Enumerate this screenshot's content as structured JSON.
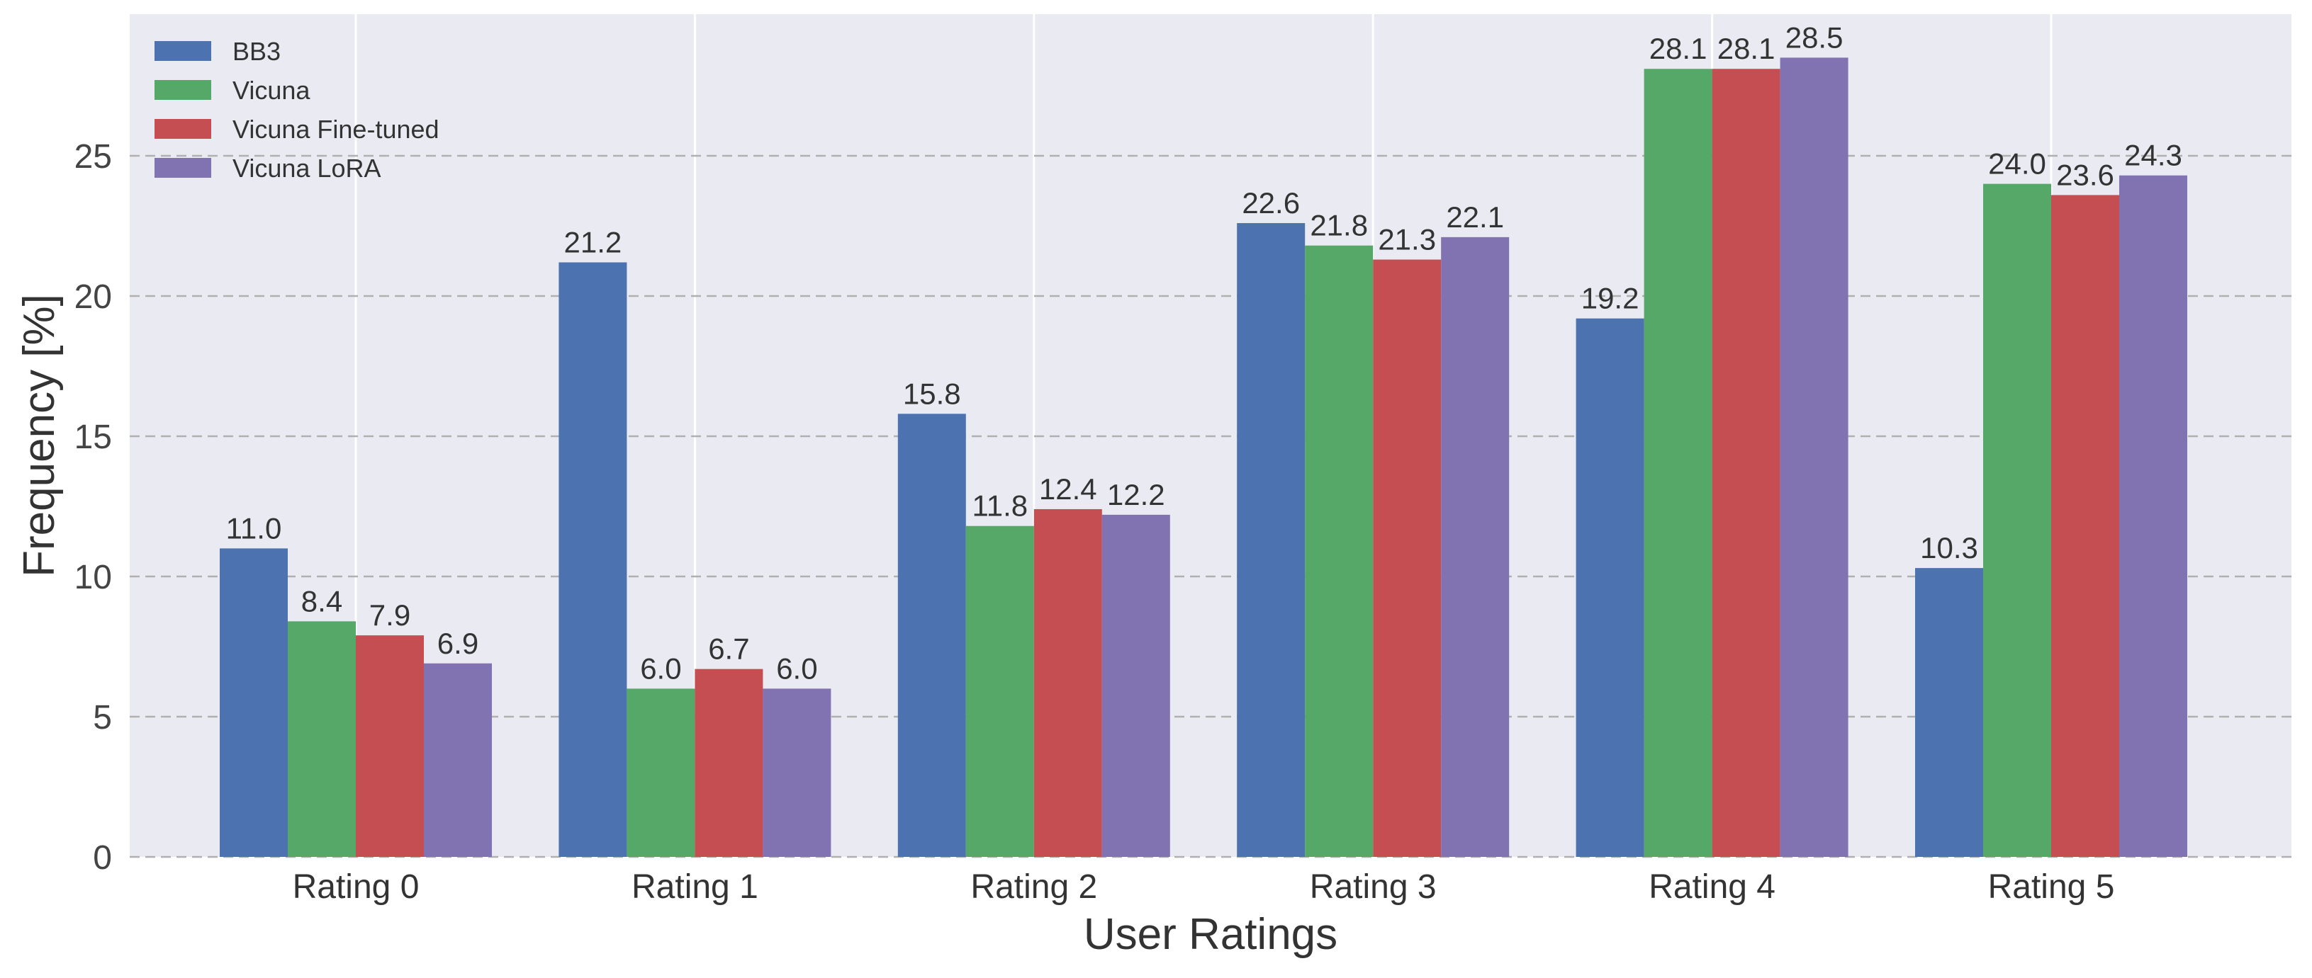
{
  "chart_data": {
    "type": "bar",
    "title": "",
    "xlabel": "User Ratings",
    "ylabel": "Frequency [%]",
    "categories": [
      "Rating 0",
      "Rating 1",
      "Rating 2",
      "Rating 3",
      "Rating 4",
      "Rating 5"
    ],
    "ylim": [
      0,
      30
    ],
    "yticks": [
      0,
      5,
      10,
      15,
      20,
      25
    ],
    "grid": true,
    "legend_position": "top-left",
    "series": [
      {
        "name": "BB3",
        "color": "#4c72b0",
        "values": [
          11.0,
          21.2,
          15.8,
          22.6,
          19.2,
          10.3
        ]
      },
      {
        "name": "Vicuna",
        "color": "#55a868",
        "values": [
          8.4,
          6.0,
          11.8,
          21.8,
          28.1,
          24.0
        ]
      },
      {
        "name": "Vicuna Fine-tuned",
        "color": "#c44e52",
        "values": [
          7.9,
          6.7,
          12.4,
          21.3,
          28.1,
          23.6
        ]
      },
      {
        "name": "Vicuna LoRA",
        "color": "#8172b2",
        "values": [
          6.9,
          6.0,
          12.2,
          22.1,
          28.5,
          24.3
        ]
      }
    ]
  }
}
